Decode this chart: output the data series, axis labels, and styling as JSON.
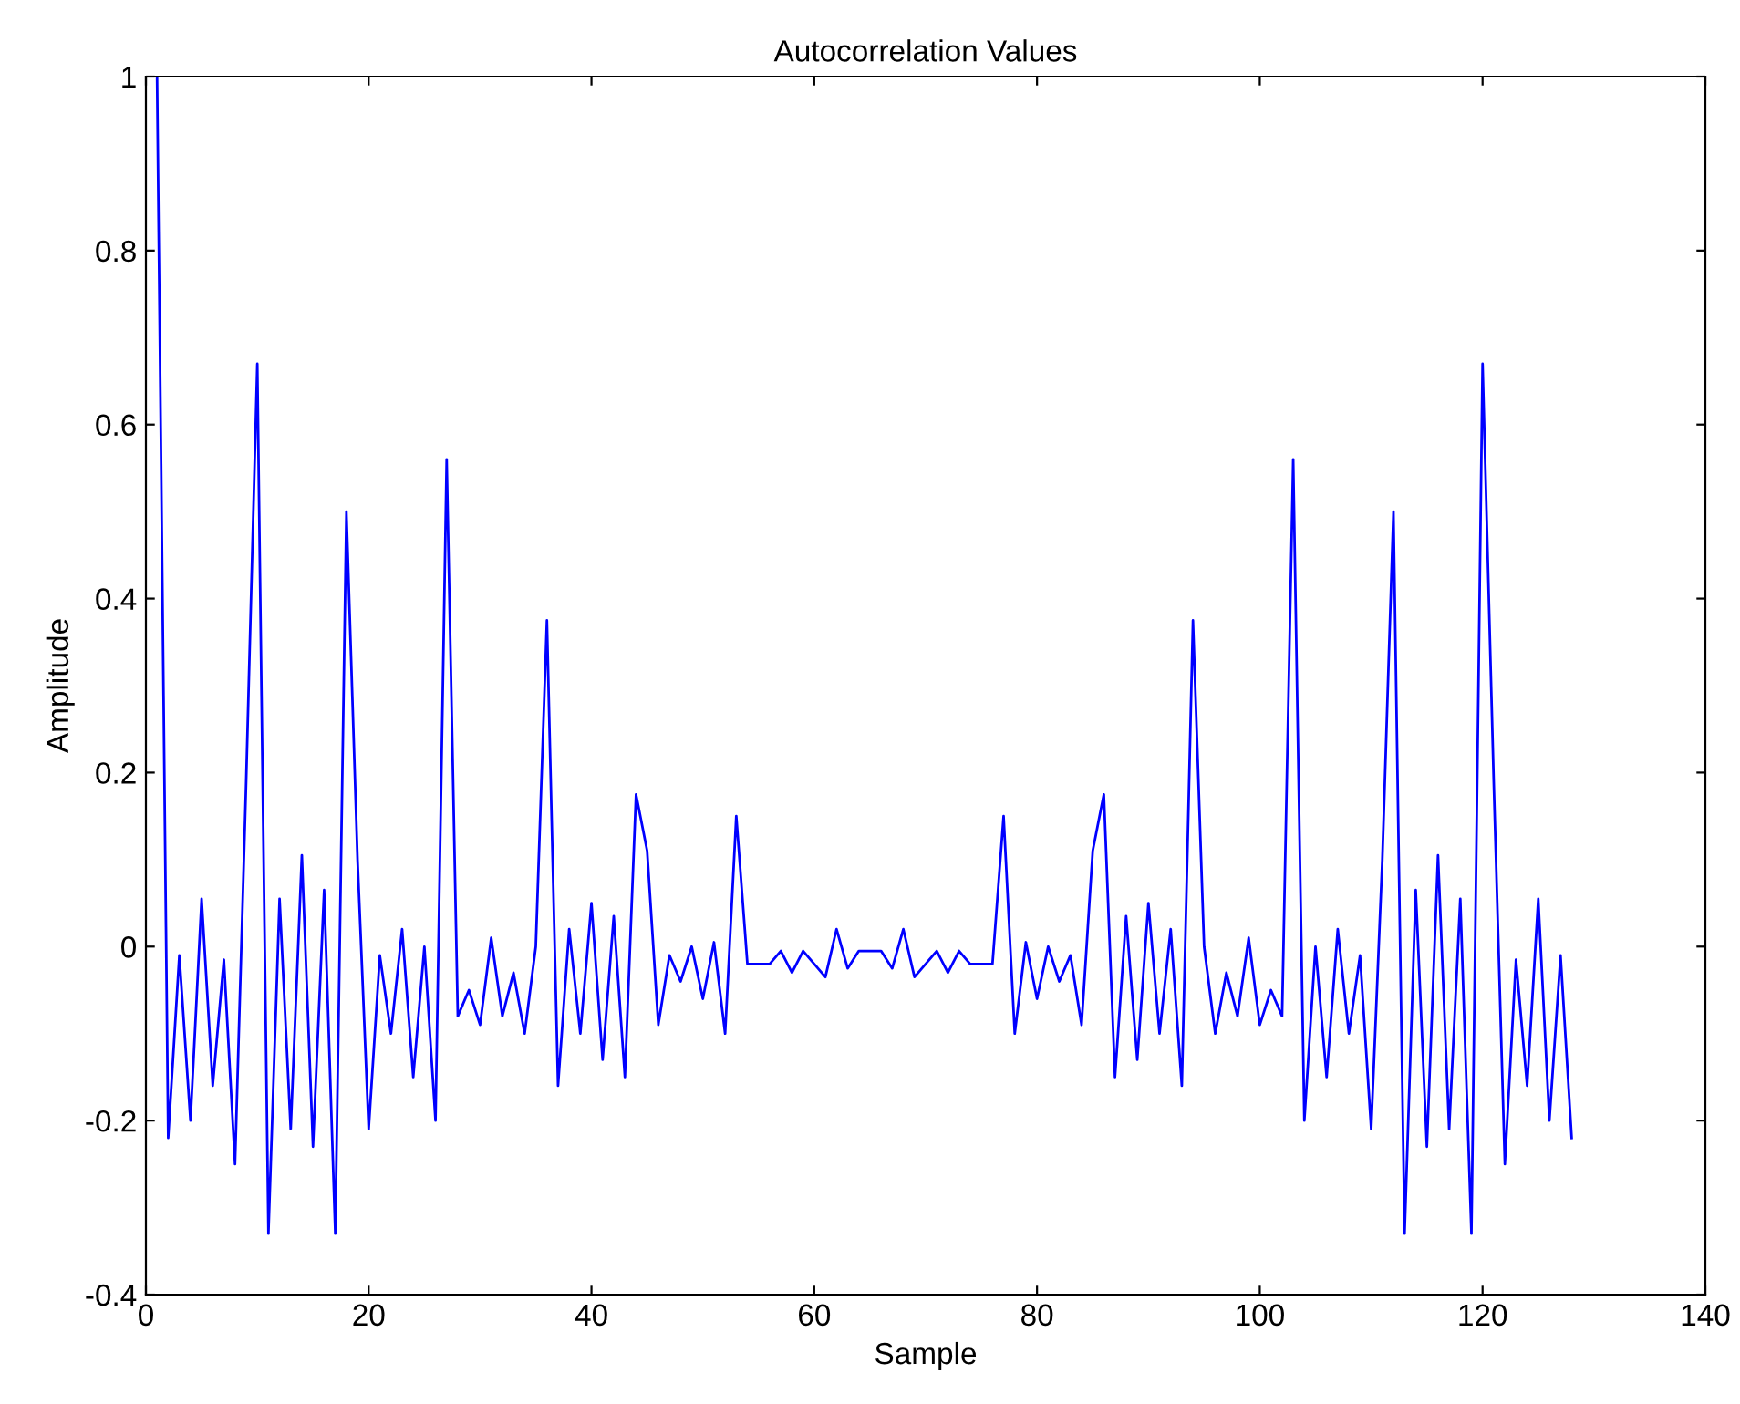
{
  "chart_data": {
    "type": "line",
    "title": "Autocorrelation Values",
    "xlabel": "Sample",
    "ylabel": "Amplitude",
    "x": [
      1,
      2,
      3,
      4,
      5,
      6,
      7,
      8,
      9,
      10,
      11,
      12,
      13,
      14,
      15,
      16,
      17,
      18,
      19,
      20,
      21,
      22,
      23,
      24,
      25,
      26,
      27,
      28,
      29,
      30,
      31,
      32,
      33,
      34,
      35,
      36,
      37,
      38,
      39,
      40,
      41,
      42,
      43,
      44,
      45,
      46,
      47,
      48,
      49,
      50,
      51,
      52,
      53,
      54,
      55,
      56,
      57,
      58,
      59,
      60,
      61,
      62,
      63,
      64,
      65,
      66,
      67,
      68,
      69,
      70,
      71,
      72,
      73,
      74,
      75,
      76,
      77,
      78,
      79,
      80,
      81,
      82,
      83,
      84,
      85,
      86,
      87,
      88,
      89,
      90,
      91,
      92,
      93,
      94,
      95,
      96,
      97,
      98,
      99,
      100,
      101,
      102,
      103,
      104,
      105,
      106,
      107,
      108,
      109,
      110,
      111,
      112,
      113,
      114,
      115,
      116,
      117,
      118,
      119,
      120,
      121,
      122,
      123,
      124,
      125,
      126,
      127,
      128
    ],
    "series": [
      {
        "color": "#0000ff",
        "values": [
          1.0,
          -0.22,
          -0.01,
          -0.2,
          0.055,
          -0.16,
          -0.015,
          -0.25,
          0.19,
          0.67,
          -0.33,
          0.055,
          -0.21,
          0.105,
          -0.23,
          0.065,
          -0.33,
          0.5,
          0.1,
          -0.21,
          -0.01,
          -0.1,
          0.02,
          -0.15,
          0.0,
          -0.2,
          0.56,
          -0.08,
          -0.05,
          -0.09,
          0.01,
          -0.08,
          -0.03,
          -0.1,
          0.0,
          0.375,
          -0.16,
          0.02,
          -0.1,
          0.05,
          -0.13,
          0.035,
          -0.15,
          0.175,
          0.11,
          -0.09,
          -0.01,
          -0.04,
          0.0,
          -0.06,
          0.005,
          -0.1,
          0.15,
          -0.02,
          -0.02,
          -0.02,
          -0.005,
          -0.03,
          -0.005,
          -0.02,
          -0.035,
          0.02,
          -0.025,
          -0.005,
          -0.005,
          -0.005,
          -0.025,
          0.02,
          -0.035,
          -0.02,
          -0.005,
          -0.03,
          -0.005,
          -0.02,
          -0.02,
          -0.02,
          0.15,
          -0.1,
          0.005,
          -0.06,
          0.0,
          -0.04,
          -0.01,
          -0.09,
          0.11,
          0.175,
          -0.15,
          0.035,
          -0.13,
          0.05,
          -0.1,
          0.02,
          -0.16,
          0.375,
          0.0,
          -0.1,
          -0.03,
          -0.08,
          0.01,
          -0.09,
          -0.05,
          -0.08,
          0.56,
          -0.2,
          0.0,
          -0.15,
          0.02,
          -0.1,
          -0.01,
          -0.21,
          0.1,
          0.5,
          -0.33,
          0.065,
          -0.23,
          0.105,
          -0.21,
          0.055,
          -0.33,
          0.67,
          0.19,
          -0.25,
          -0.015,
          -0.16,
          0.055,
          -0.2,
          -0.01,
          -0.22
        ]
      }
    ],
    "xlim": [
      0,
      140
    ],
    "xticks": [
      0,
      20,
      40,
      60,
      80,
      100,
      120,
      140
    ],
    "ylim": [
      -0.4,
      1
    ],
    "yticks": [
      -0.4,
      -0.2,
      0,
      0.2,
      0.4,
      0.6,
      0.8,
      1
    ],
    "grid": false,
    "legend": false,
    "marker": "none",
    "line_style": "solid"
  }
}
